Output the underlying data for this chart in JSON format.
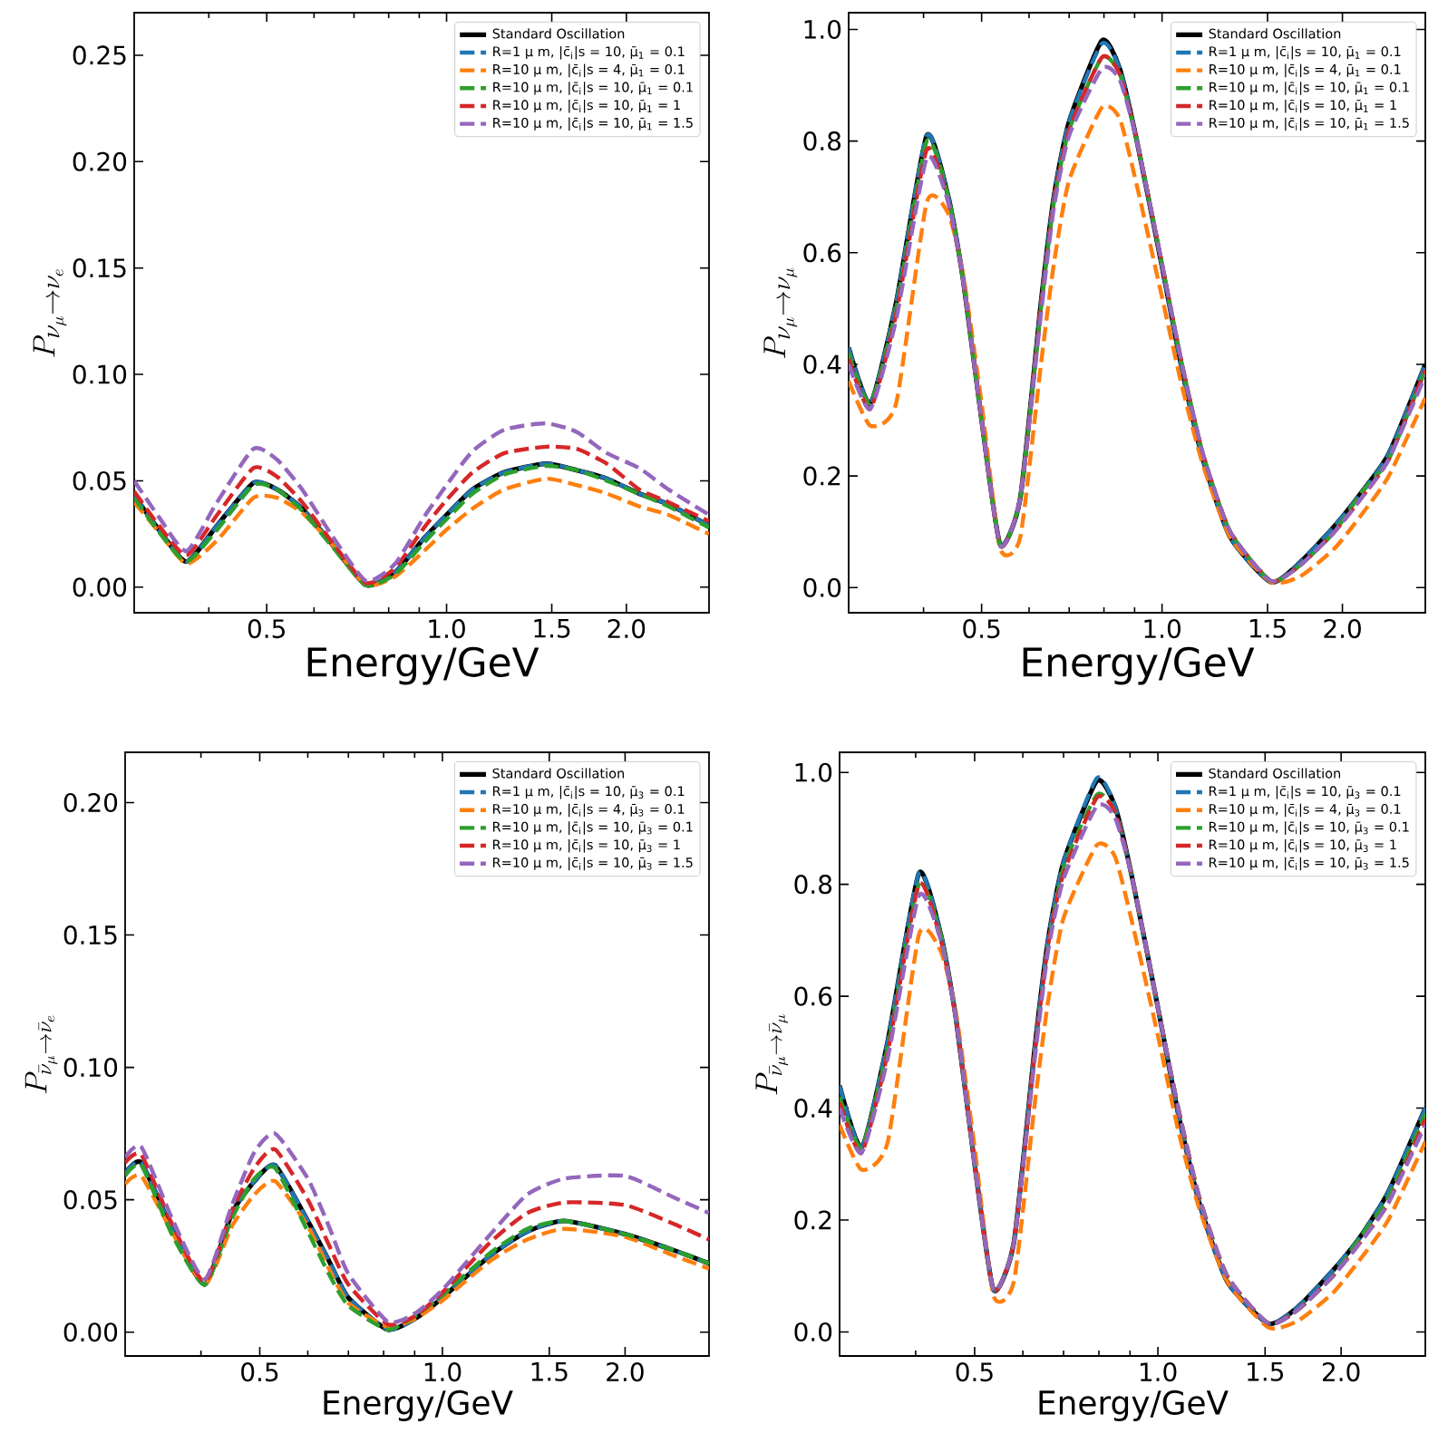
{
  "chart_data": [
    {
      "type": "line",
      "xlabel": "Energy/GeV",
      "ylabel": "P_{\\nu_\\mu \\rightarrow \\nu_e}",
      "log": "x",
      "legend": "top right",
      "xlim": [
        0.3,
        2.75
      ],
      "ylim": [
        -0.012,
        0.27
      ],
      "xticks": [
        {
          "value": 0.4,
          "label": null
        },
        {
          "value": 0.5,
          "label": "0.5"
        },
        {
          "value": 0.6,
          "label": null
        },
        {
          "value": 0.7,
          "label": null
        },
        {
          "value": 0.8,
          "label": null
        },
        {
          "value": 0.9,
          "label": null
        },
        {
          "value": 1,
          "label": "1.0"
        },
        {
          "value": 1.5,
          "label": "1.5"
        },
        {
          "value": 2,
          "label": "2.0"
        }
      ],
      "yticks": [
        {
          "value": 0,
          "label": "0.00"
        },
        {
          "value": 0.05,
          "label": "0.05"
        },
        {
          "value": 0.1,
          "label": "0.10"
        },
        {
          "value": 0.15,
          "label": "0.15"
        },
        {
          "value": 0.2,
          "label": "0.20"
        },
        {
          "value": 0.25,
          "label": "0.25"
        }
      ],
      "x": [
        0.3,
        0.33,
        0.367,
        0.413,
        0.475,
        0.52,
        0.573,
        0.644,
        0.733,
        0.82,
        0.917,
        1.0,
        1.106,
        1.25,
        1.467,
        1.65,
        1.855,
        2.1,
        2.35,
        2.75
      ],
      "series": [
        {
          "name": "Standard Oscillation",
          "color": "#000000",
          "line_style": "solid",
          "values": [
            0.043,
            0.027,
            0.012,
            0.029,
            0.049,
            0.046,
            0.037,
            0.02,
            0.001,
            0.007,
            0.023,
            0.034,
            0.046,
            0.054,
            0.058,
            0.055,
            0.051,
            0.044,
            0.039,
            0.029
          ]
        },
        {
          "name": "R=1 μ m, |c̄$_{i}$|s = 10, μ̄$_{1}$ = 0.1",
          "color": "#1f77b4",
          "line_style": "dashed",
          "values": [
            0.043,
            0.027,
            0.012,
            0.029,
            0.049,
            0.046,
            0.037,
            0.02,
            0.001,
            0.007,
            0.023,
            0.034,
            0.046,
            0.054,
            0.058,
            0.055,
            0.051,
            0.044,
            0.039,
            0.029
          ]
        },
        {
          "name": "R=10 μ m, |c̄$_{i}$|s = 4, μ̄$_{1}$ = 0.1",
          "color": "#ff7f0e",
          "line_style": "dashed",
          "values": [
            0.04,
            0.026,
            0.011,
            0.022,
            0.042,
            0.042,
            0.035,
            0.02,
            0.001,
            0.005,
            0.017,
            0.027,
            0.037,
            0.046,
            0.051,
            0.048,
            0.044,
            0.038,
            0.034,
            0.025
          ]
        },
        {
          "name": "R=10 μ m, |c̄$_{i}$|s = 10, μ̄$_{1}$ = 0.1",
          "color": "#2ca02c",
          "line_style": "dashed",
          "values": [
            0.042,
            0.026,
            0.012,
            0.027,
            0.048,
            0.046,
            0.036,
            0.019,
            0.001,
            0.006,
            0.021,
            0.032,
            0.044,
            0.053,
            0.057,
            0.055,
            0.05,
            0.044,
            0.038,
            0.028
          ]
        },
        {
          "name": "R=10 μ m, |c̄$_{i}$|s = 10, μ̄$_{1}$ = 1",
          "color": "#d62728",
          "line_style": "dashed",
          "values": [
            0.045,
            0.029,
            0.015,
            0.034,
            0.056,
            0.052,
            0.04,
            0.021,
            0.002,
            0.009,
            0.028,
            0.041,
            0.054,
            0.063,
            0.066,
            0.065,
            0.058,
            0.046,
            0.04,
            0.031
          ]
        },
        {
          "name": "R=10 μ m, |c̄$_{i}$|s = 10, μ̄$_{1}$ = 1.5",
          "color": "#9467bd",
          "line_style": "dashed",
          "values": [
            0.05,
            0.033,
            0.017,
            0.04,
            0.065,
            0.06,
            0.046,
            0.024,
            0.003,
            0.011,
            0.033,
            0.048,
            0.064,
            0.074,
            0.077,
            0.073,
            0.063,
            0.056,
            0.046,
            0.034
          ]
        }
      ]
    },
    {
      "type": "line",
      "xlabel": "Energy/GeV",
      "ylabel": "P_{\\nu_\\mu \\rightarrow \\nu_\\mu}",
      "log": "x",
      "legend": "top right",
      "xlim": [
        0.3,
        2.75
      ],
      "ylim": [
        -0.045,
        1.03
      ],
      "xticks": [
        {
          "value": 0.4,
          "label": null
        },
        {
          "value": 0.5,
          "label": "0.5"
        },
        {
          "value": 0.6,
          "label": null
        },
        {
          "value": 0.7,
          "label": null
        },
        {
          "value": 0.8,
          "label": null
        },
        {
          "value": 0.9,
          "label": null
        },
        {
          "value": 1,
          "label": "1.0"
        },
        {
          "value": 1.5,
          "label": "1.5"
        },
        {
          "value": 2,
          "label": "2.0"
        }
      ],
      "yticks": [
        {
          "value": 0,
          "label": "0.0"
        },
        0.2,
        0.4,
        0.6,
        0.8,
        {
          "value": 1,
          "label": "1.0"
        }
      ],
      "x": [
        0.3,
        0.326,
        0.36,
        0.405,
        0.44,
        0.466,
        0.5,
        0.537,
        0.58,
        0.628,
        0.66,
        0.7,
        0.794,
        0.85,
        0.908,
        1.0,
        1.08,
        1.17,
        1.3,
        1.52,
        1.7,
        1.94,
        2.15,
        2.39,
        2.75
      ],
      "series": [
        {
          "name": "Standard Oscillation",
          "color": "#000000",
          "line_style": "solid",
          "values": [
            0.43,
            0.33,
            0.51,
            0.81,
            0.7,
            0.55,
            0.3,
            0.077,
            0.16,
            0.51,
            0.7,
            0.835,
            0.98,
            0.93,
            0.8,
            0.575,
            0.39,
            0.23,
            0.09,
            0.01,
            0.045,
            0.11,
            0.17,
            0.24,
            0.4
          ]
        },
        {
          "name": "R=1 μ m, |c̄$_{i}$|s = 10, μ̄$_{1}$ = 0.1",
          "color": "#1f77b4",
          "line_style": "dashed",
          "values": [
            0.43,
            0.33,
            0.51,
            0.81,
            0.7,
            0.55,
            0.3,
            0.077,
            0.16,
            0.51,
            0.7,
            0.835,
            0.975,
            0.93,
            0.8,
            0.575,
            0.39,
            0.23,
            0.09,
            0.01,
            0.045,
            0.11,
            0.17,
            0.24,
            0.4
          ]
        },
        {
          "name": "R=10 μ m, |c̄$_{i}$|s = 4, μ̄$_{1}$ = 0.1",
          "color": "#ff7f0e",
          "line_style": "dashed",
          "values": [
            0.37,
            0.29,
            0.33,
            0.69,
            0.67,
            0.56,
            0.33,
            0.07,
            0.09,
            0.4,
            0.58,
            0.73,
            0.86,
            0.84,
            0.72,
            0.52,
            0.36,
            0.22,
            0.09,
            0.01,
            0.02,
            0.07,
            0.13,
            0.2,
            0.34
          ]
        },
        {
          "name": "R=10 μ m, |c̄$_{i}$|s = 10, μ̄$_{1}$ = 0.1",
          "color": "#2ca02c",
          "line_style": "dashed",
          "values": [
            0.42,
            0.33,
            0.5,
            0.8,
            0.7,
            0.55,
            0.3,
            0.075,
            0.16,
            0.5,
            0.69,
            0.82,
            0.95,
            0.92,
            0.8,
            0.58,
            0.4,
            0.24,
            0.1,
            0.012,
            0.04,
            0.1,
            0.17,
            0.23,
            0.39
          ]
        },
        {
          "name": "R=10 μ m, |c̄$_{i}$|s = 10, μ̄$_{1}$ = 1",
          "color": "#d62728",
          "line_style": "dashed",
          "values": [
            0.41,
            0.32,
            0.49,
            0.785,
            0.69,
            0.55,
            0.3,
            0.075,
            0.16,
            0.5,
            0.69,
            0.82,
            0.95,
            0.92,
            0.8,
            0.58,
            0.4,
            0.24,
            0.1,
            0.012,
            0.04,
            0.1,
            0.16,
            0.23,
            0.39
          ]
        },
        {
          "name": "R=10 μ m, |c̄$_{i}$|s = 10, μ̄$_{1}$ = 1.5",
          "color": "#9467bd",
          "line_style": "dashed",
          "values": [
            0.4,
            0.32,
            0.48,
            0.77,
            0.69,
            0.55,
            0.3,
            0.075,
            0.16,
            0.49,
            0.68,
            0.81,
            0.93,
            0.91,
            0.8,
            0.58,
            0.4,
            0.24,
            0.1,
            0.012,
            0.04,
            0.1,
            0.16,
            0.23,
            0.38
          ]
        }
      ]
    },
    {
      "type": "line",
      "xlabel": "Energy/GeV",
      "ylabel": "P_{\\bar{\\nu}_\\mu \\rightarrow \\bar{\\nu}_e}",
      "log": "x",
      "legend": "top right",
      "xlim": [
        0.3,
        2.75
      ],
      "ylim": [
        -0.009,
        0.219
      ],
      "xticks": [
        {
          "value": 0.4,
          "label": null
        },
        {
          "value": 0.5,
          "label": "0.5"
        },
        {
          "value": 0.6,
          "label": null
        },
        {
          "value": 0.7,
          "label": null
        },
        {
          "value": 0.8,
          "label": null
        },
        {
          "value": 0.9,
          "label": null
        },
        {
          "value": 1,
          "label": "1.0"
        },
        {
          "value": 1.5,
          "label": "1.5"
        },
        {
          "value": 2,
          "label": "2.0"
        }
      ],
      "yticks": [
        {
          "value": 0,
          "label": "0.00"
        },
        {
          "value": 0.05,
          "label": "0.05"
        },
        {
          "value": 0.1,
          "label": "0.10"
        },
        {
          "value": 0.15,
          "label": "0.15"
        },
        {
          "value": 0.2,
          "label": "0.20"
        }
      ],
      "x": [
        0.3,
        0.319,
        0.36,
        0.406,
        0.45,
        0.49,
        0.53,
        0.6,
        0.65,
        0.7,
        0.812,
        0.9,
        1.0,
        1.2,
        1.38,
        1.59,
        2.0,
        2.4,
        2.75
      ],
      "series": [
        {
          "name": "Standard Oscillation",
          "color": "#000000",
          "line_style": "solid",
          "values": [
            0.06,
            0.064,
            0.038,
            0.018,
            0.045,
            0.057,
            0.063,
            0.042,
            0.027,
            0.013,
            0.001,
            0.005,
            0.013,
            0.029,
            0.038,
            0.042,
            0.037,
            0.031,
            0.026
          ]
        },
        {
          "name": "R=1 μ m, |c̄$_{i}$|s = 10, μ̄$_{3}$ = 0.1",
          "color": "#1f77b4",
          "line_style": "dashed",
          "values": [
            0.06,
            0.064,
            0.038,
            0.018,
            0.045,
            0.057,
            0.063,
            0.042,
            0.027,
            0.013,
            0.001,
            0.005,
            0.013,
            0.029,
            0.038,
            0.042,
            0.037,
            0.031,
            0.026
          ]
        },
        {
          "name": "R=10 μ m, |c̄$_{i}$|s = 4, μ̄$_{3}$ = 0.1",
          "color": "#ff7f0e",
          "line_style": "dashed",
          "values": [
            0.056,
            0.059,
            0.037,
            0.018,
            0.04,
            0.052,
            0.057,
            0.04,
            0.024,
            0.011,
            0.002,
            0.005,
            0.012,
            0.027,
            0.035,
            0.039,
            0.036,
            0.029,
            0.024
          ]
        },
        {
          "name": "R=10 μ m, |c̄$_{i}$|s = 10, μ̄$_{3}$ = 0.1",
          "color": "#2ca02c",
          "line_style": "dashed",
          "values": [
            0.059,
            0.063,
            0.036,
            0.018,
            0.043,
            0.058,
            0.062,
            0.038,
            0.022,
            0.01,
            0.001,
            0.006,
            0.014,
            0.03,
            0.039,
            0.042,
            0.037,
            0.031,
            0.026
          ]
        },
        {
          "name": "R=10 μ m, |c̄$_{i}$|s = 10, μ̄$_{3}$ = 1",
          "color": "#d62728",
          "line_style": "dashed",
          "values": [
            0.064,
            0.067,
            0.04,
            0.019,
            0.046,
            0.062,
            0.069,
            0.05,
            0.033,
            0.018,
            0.003,
            0.006,
            0.015,
            0.034,
            0.045,
            0.049,
            0.048,
            0.041,
            0.035
          ]
        },
        {
          "name": "R=10 μ m, |c̄$_{i}$|s = 10, μ̄$_{3}$ = 1.5",
          "color": "#9467bd",
          "line_style": "dashed",
          "values": [
            0.066,
            0.07,
            0.042,
            0.02,
            0.048,
            0.068,
            0.075,
            0.058,
            0.04,
            0.022,
            0.004,
            0.007,
            0.016,
            0.037,
            0.052,
            0.058,
            0.059,
            0.051,
            0.045
          ]
        }
      ]
    },
    {
      "type": "line",
      "xlabel": "Energy/GeV",
      "ylabel": "P_{\\bar{\\nu}_\\mu \\rightarrow \\bar{\\nu}_\\mu}",
      "log": "x",
      "legend": "top right",
      "xlim": [
        0.3,
        2.75
      ],
      "ylim": [
        -0.043,
        1.036
      ],
      "xticks": [
        {
          "value": 0.4,
          "label": null
        },
        {
          "value": 0.5,
          "label": "0.5"
        },
        {
          "value": 0.6,
          "label": null
        },
        {
          "value": 0.7,
          "label": null
        },
        {
          "value": 0.8,
          "label": null
        },
        {
          "value": 0.9,
          "label": null
        },
        {
          "value": 1,
          "label": "1.0"
        },
        {
          "value": 1.5,
          "label": "1.5"
        },
        {
          "value": 2,
          "label": "2.0"
        }
      ],
      "yticks": [
        {
          "value": 0,
          "label": "0.0"
        },
        0.2,
        0.4,
        0.6,
        0.8,
        {
          "value": 1,
          "label": "1.0"
        }
      ],
      "x": [
        0.3,
        0.326,
        0.36,
        0.405,
        0.44,
        0.466,
        0.5,
        0.537,
        0.58,
        0.628,
        0.66,
        0.7,
        0.794,
        0.85,
        0.908,
        1.0,
        1.08,
        1.17,
        1.3,
        1.52,
        1.7,
        1.94,
        2.15,
        2.39,
        2.75
      ],
      "series": [
        {
          "name": "Standard Oscillation",
          "color": "#000000",
          "line_style": "solid",
          "values": [
            0.44,
            0.33,
            0.52,
            0.82,
            0.71,
            0.56,
            0.3,
            0.075,
            0.16,
            0.51,
            0.7,
            0.84,
            0.985,
            0.94,
            0.81,
            0.58,
            0.39,
            0.23,
            0.09,
            0.015,
            0.045,
            0.11,
            0.17,
            0.25,
            0.4
          ]
        },
        {
          "name": "R=1 μ m, |c̄$_{i}$|s = 10, μ̄$_{3}$ = 0.1",
          "color": "#1f77b4",
          "line_style": "dashed",
          "values": [
            0.44,
            0.33,
            0.52,
            0.82,
            0.71,
            0.56,
            0.3,
            0.075,
            0.16,
            0.51,
            0.7,
            0.84,
            0.99,
            0.94,
            0.81,
            0.58,
            0.39,
            0.23,
            0.09,
            0.015,
            0.045,
            0.11,
            0.17,
            0.25,
            0.4
          ]
        },
        {
          "name": "R=10 μ m, |c̄$_{i}$|s = 4, μ̄$_{3}$ = 0.1",
          "color": "#ff7f0e",
          "line_style": "dashed",
          "values": [
            0.37,
            0.29,
            0.34,
            0.71,
            0.68,
            0.57,
            0.33,
            0.065,
            0.09,
            0.41,
            0.59,
            0.74,
            0.87,
            0.85,
            0.73,
            0.53,
            0.36,
            0.22,
            0.09,
            0.008,
            0.02,
            0.07,
            0.13,
            0.2,
            0.34
          ]
        },
        {
          "name": "R=10 μ m, |c̄$_{i}$|s = 10, μ̄$_{3}$ = 0.1",
          "color": "#2ca02c",
          "line_style": "dashed",
          "values": [
            0.42,
            0.33,
            0.51,
            0.8,
            0.71,
            0.56,
            0.3,
            0.075,
            0.16,
            0.5,
            0.69,
            0.83,
            0.96,
            0.93,
            0.81,
            0.58,
            0.4,
            0.24,
            0.1,
            0.015,
            0.04,
            0.1,
            0.17,
            0.24,
            0.39
          ]
        },
        {
          "name": "R=10 μ m, |c̄$_{i}$|s = 10, μ̄$_{3}$ = 1",
          "color": "#d62728",
          "line_style": "dashed",
          "values": [
            0.41,
            0.32,
            0.5,
            0.8,
            0.7,
            0.56,
            0.3,
            0.075,
            0.16,
            0.5,
            0.69,
            0.82,
            0.955,
            0.93,
            0.81,
            0.58,
            0.4,
            0.24,
            0.1,
            0.015,
            0.04,
            0.1,
            0.16,
            0.23,
            0.38
          ]
        },
        {
          "name": "R=10 μ m, |c̄$_{i}$|s = 10, μ̄$_{3}$ = 1.5",
          "color": "#9467bd",
          "line_style": "dashed",
          "values": [
            0.4,
            0.32,
            0.49,
            0.78,
            0.7,
            0.56,
            0.3,
            0.075,
            0.16,
            0.49,
            0.68,
            0.81,
            0.94,
            0.92,
            0.81,
            0.58,
            0.4,
            0.24,
            0.1,
            0.015,
            0.04,
            0.1,
            0.16,
            0.23,
            0.37
          ]
        }
      ]
    }
  ]
}
